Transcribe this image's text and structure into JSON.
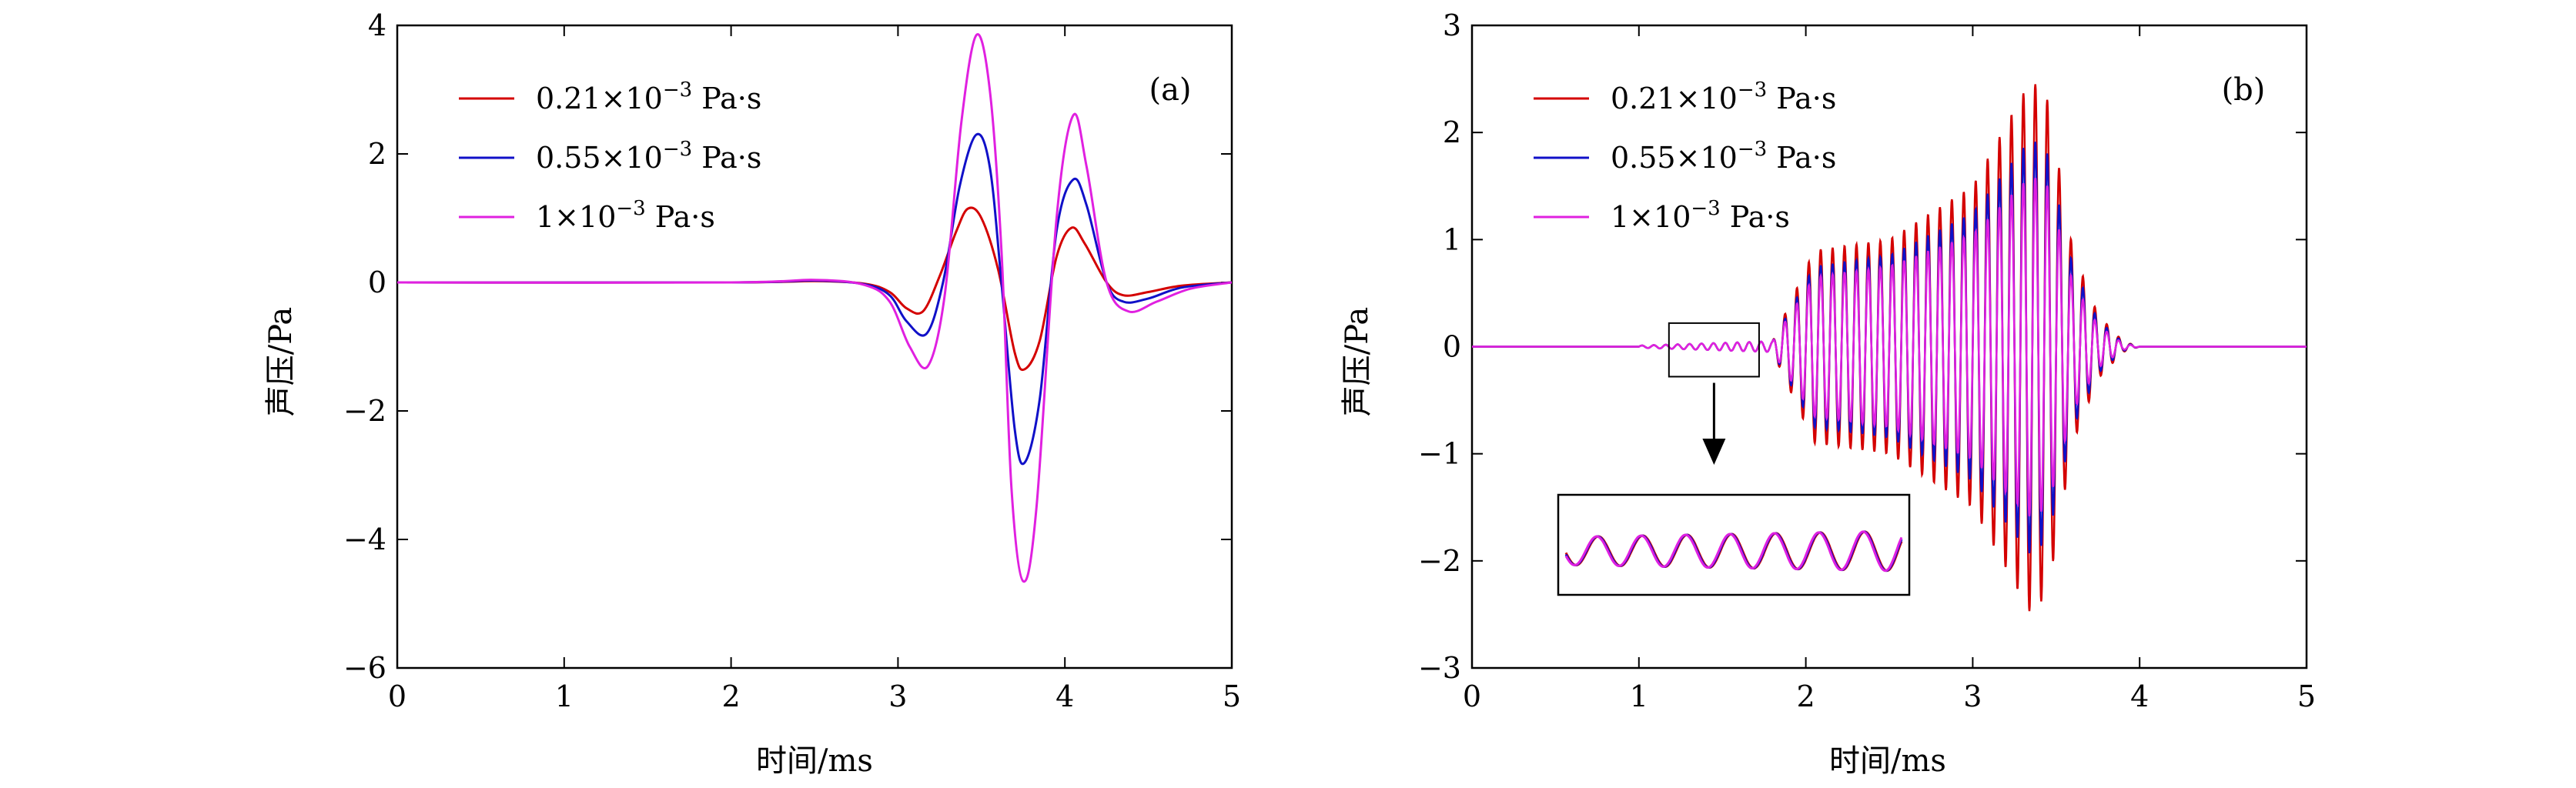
{
  "figure": {
    "panels": [
      "a",
      "b"
    ]
  },
  "chart_data": [
    {
      "type": "line",
      "panel_label": "(a)",
      "xlabel": "时间/ms",
      "ylabel": "声压/Pa",
      "xlim": [
        0,
        5
      ],
      "ylim": [
        -6,
        4
      ],
      "xticks": [
        0,
        1,
        2,
        3,
        4,
        5
      ],
      "xtick_labels": [
        "0",
        "1",
        "2",
        "3",
        "4",
        "5"
      ],
      "yticks": [
        -6,
        -4,
        -2,
        0,
        2,
        4
      ],
      "ytick_labels": [
        "−6",
        "−4",
        "−2",
        "0",
        "2",
        "4"
      ],
      "grid": false,
      "legend_position": "top-left",
      "series": [
        {
          "name": "0.21×10⁻³ Pa·s",
          "legend_base": "0.21×10",
          "legend_exp": "−3",
          "legend_unit": " Pa·s",
          "color": "#d40000",
          "points": [
            [
              0,
              0
            ],
            [
              2.0,
              0
            ],
            [
              2.5,
              0.02
            ],
            [
              2.8,
              -0.02
            ],
            [
              2.95,
              -0.15
            ],
            [
              3.05,
              -0.4
            ],
            [
              3.15,
              -0.45
            ],
            [
              3.25,
              0.1
            ],
            [
              3.35,
              0.8
            ],
            [
              3.42,
              1.15
            ],
            [
              3.5,
              1.0
            ],
            [
              3.6,
              0.2
            ],
            [
              3.7,
              -1.1
            ],
            [
              3.76,
              -1.35
            ],
            [
              3.85,
              -0.9
            ],
            [
              3.95,
              0.4
            ],
            [
              4.04,
              0.85
            ],
            [
              4.12,
              0.6
            ],
            [
              4.25,
              0.0
            ],
            [
              4.35,
              -0.2
            ],
            [
              4.5,
              -0.15
            ],
            [
              4.7,
              -0.05
            ],
            [
              5.0,
              0
            ]
          ]
        },
        {
          "name": "0.55×10⁻³ Pa·s",
          "legend_base": "0.55×10",
          "legend_exp": "−3",
          "legend_unit": " Pa·s",
          "color": "#1010c8",
          "points": [
            [
              0,
              0
            ],
            [
              2.0,
              0
            ],
            [
              2.5,
              0.03
            ],
            [
              2.8,
              -0.03
            ],
            [
              2.95,
              -0.2
            ],
            [
              3.05,
              -0.6
            ],
            [
              3.17,
              -0.8
            ],
            [
              3.27,
              0.0
            ],
            [
              3.37,
              1.5
            ],
            [
              3.47,
              2.3
            ],
            [
              3.55,
              1.8
            ],
            [
              3.62,
              0.0
            ],
            [
              3.7,
              -2.3
            ],
            [
              3.76,
              -2.8
            ],
            [
              3.85,
              -1.8
            ],
            [
              3.95,
              0.8
            ],
            [
              4.05,
              1.6
            ],
            [
              4.13,
              1.2
            ],
            [
              4.25,
              0.0
            ],
            [
              4.35,
              -0.3
            ],
            [
              4.5,
              -0.25
            ],
            [
              4.7,
              -0.08
            ],
            [
              5.0,
              0
            ]
          ]
        },
        {
          "name": "1×10⁻³ Pa·s",
          "legend_base": "1×10",
          "legend_exp": "−3",
          "legend_unit": " Pa·s",
          "color": "#e020e0",
          "points": [
            [
              0,
              0
            ],
            [
              2.0,
              0
            ],
            [
              2.5,
              0.04
            ],
            [
              2.8,
              -0.04
            ],
            [
              2.95,
              -0.3
            ],
            [
              3.07,
              -1.0
            ],
            [
              3.18,
              -1.3
            ],
            [
              3.28,
              -0.2
            ],
            [
              3.38,
              2.5
            ],
            [
              3.47,
              3.85
            ],
            [
              3.55,
              3.0
            ],
            [
              3.62,
              0.5
            ],
            [
              3.68,
              -3.2
            ],
            [
              3.75,
              -4.65
            ],
            [
              3.83,
              -3.5
            ],
            [
              3.95,
              1.0
            ],
            [
              4.05,
              2.6
            ],
            [
              4.13,
              1.8
            ],
            [
              4.25,
              0.0
            ],
            [
              4.38,
              -0.45
            ],
            [
              4.55,
              -0.3
            ],
            [
              4.75,
              -0.1
            ],
            [
              5.0,
              0
            ]
          ]
        }
      ]
    },
    {
      "type": "line",
      "panel_label": "(b)",
      "xlabel": "时间/ms",
      "ylabel": "声压/Pa",
      "xlim": [
        0,
        5
      ],
      "ylim": [
        -3,
        3
      ],
      "xticks": [
        0,
        1,
        2,
        3,
        4,
        5
      ],
      "xtick_labels": [
        "0",
        "1",
        "2",
        "3",
        "4",
        "5"
      ],
      "yticks": [
        -3,
        -2,
        -1,
        0,
        1,
        2,
        3
      ],
      "ytick_labels": [
        "−3",
        "−2",
        "−1",
        "0",
        "1",
        "2",
        "3"
      ],
      "grid": false,
      "legend_position": "top-left",
      "oscillation_frequency_khz": 14,
      "signal_start_ms": 1.0,
      "signal_end_ms": 4.0,
      "inset": {
        "source_box_x": [
          1.18,
          1.72
        ],
        "source_box_y": [
          -0.28,
          0.22
        ],
        "note": "magnified view of the early low-amplitude oscillation"
      },
      "series": [
        {
          "name": "0.21×10⁻³ Pa·s",
          "legend_base": "0.21×10",
          "legend_exp": "−3",
          "legend_unit": " Pa·s",
          "color": "#d40000",
          "envelope": [
            [
              1.0,
              0.01
            ],
            [
              1.8,
              0.05
            ],
            [
              2.05,
              0.9
            ],
            [
              2.5,
              1.0
            ],
            [
              3.0,
              1.5
            ],
            [
              3.35,
              2.5
            ],
            [
              3.45,
              2.3
            ],
            [
              3.6,
              0.9
            ],
            [
              3.75,
              0.3
            ],
            [
              3.9,
              0.05
            ],
            [
              4.0,
              0
            ]
          ]
        },
        {
          "name": "0.55×10⁻³ Pa·s",
          "legend_base": "0.55×10",
          "legend_exp": "−3",
          "legend_unit": " Pa·s",
          "color": "#1010c8",
          "envelope": [
            [
              1.0,
              0.01
            ],
            [
              1.8,
              0.05
            ],
            [
              2.05,
              0.75
            ],
            [
              2.5,
              0.85
            ],
            [
              3.0,
              1.25
            ],
            [
              3.35,
              1.95
            ],
            [
              3.45,
              1.8
            ],
            [
              3.6,
              0.75
            ],
            [
              3.75,
              0.25
            ],
            [
              3.9,
              0.04
            ],
            [
              4.0,
              0
            ]
          ]
        },
        {
          "name": "1×10⁻³ Pa·s",
          "legend_base": "1×10",
          "legend_exp": "−3",
          "legend_unit": " Pa·s",
          "color": "#e020e0",
          "envelope": [
            [
              1.0,
              0.01
            ],
            [
              1.8,
              0.05
            ],
            [
              2.05,
              0.65
            ],
            [
              2.5,
              0.75
            ],
            [
              3.0,
              1.05
            ],
            [
              3.35,
              1.6
            ],
            [
              3.45,
              1.5
            ],
            [
              3.6,
              0.6
            ],
            [
              3.75,
              0.2
            ],
            [
              3.9,
              0.03
            ],
            [
              4.0,
              0
            ]
          ]
        }
      ]
    }
  ]
}
